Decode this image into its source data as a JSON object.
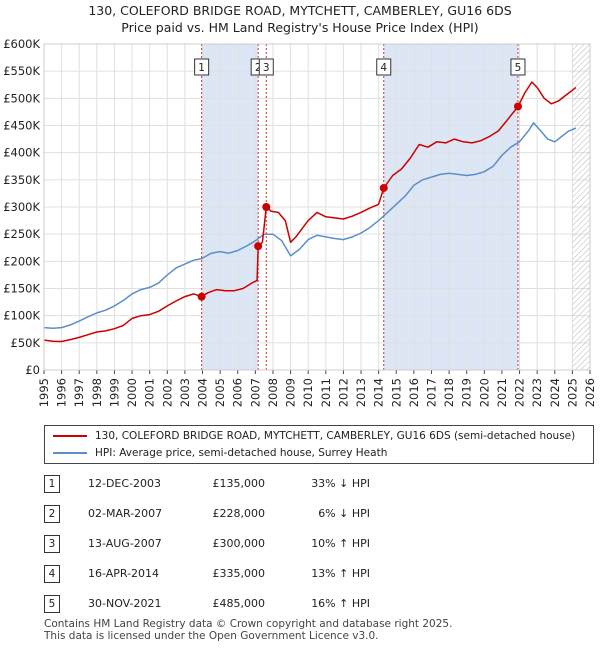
{
  "title_line1": "130, COLEFORD BRIDGE ROAD, MYTCHETT, CAMBERLEY, GU16 6DS",
  "title_line2": "Price paid vs. HM Land Registry's House Price Index (HPI)",
  "chart_data": {
    "type": "line",
    "xlim": [
      1995,
      2026
    ],
    "ylim": [
      0,
      600000
    ],
    "y_ticks": [
      {
        "value": 0,
        "label": "£0"
      },
      {
        "value": 50000,
        "label": "£50K"
      },
      {
        "value": 100000,
        "label": "£100K"
      },
      {
        "value": 150000,
        "label": "£150K"
      },
      {
        "value": 200000,
        "label": "£200K"
      },
      {
        "value": 250000,
        "label": "£250K"
      },
      {
        "value": 300000,
        "label": "£300K"
      },
      {
        "value": 350000,
        "label": "£350K"
      },
      {
        "value": 400000,
        "label": "£400K"
      },
      {
        "value": 450000,
        "label": "£450K"
      },
      {
        "value": 500000,
        "label": "£500K"
      },
      {
        "value": 550000,
        "label": "£550K"
      },
      {
        "value": 600000,
        "label": "£600K"
      }
    ],
    "x_ticks": [
      "1995",
      "1996",
      "1997",
      "1998",
      "1999",
      "2000",
      "2001",
      "2002",
      "2003",
      "2004",
      "2005",
      "2006",
      "2007",
      "2008",
      "2009",
      "2010",
      "2011",
      "2012",
      "2013",
      "2014",
      "2015",
      "2016",
      "2017",
      "2018",
      "2019",
      "2020",
      "2021",
      "2022",
      "2023",
      "2024",
      "2025",
      "2026"
    ],
    "grid": true,
    "ownership_shading": [
      [
        2003.95,
        2007.15
      ],
      [
        2014.29,
        2021.91
      ]
    ],
    "future_hatch_from": 2025.0,
    "colors": {
      "price": "#cc0000",
      "hpi": "#5b8fc9",
      "shade": "#dde6f5",
      "marker_line": "#cc0000"
    },
    "series": [
      {
        "name": "130, COLEFORD BRIDGE ROAD, MYTCHETT, CAMBERLEY, GU16 6DS (semi-detached house)",
        "color": "#cc0000",
        "points": [
          [
            1995.0,
            55000
          ],
          [
            1995.5,
            53000
          ],
          [
            1996.0,
            52500
          ],
          [
            1996.5,
            56000
          ],
          [
            1997.0,
            60000
          ],
          [
            1997.5,
            65000
          ],
          [
            1998.0,
            70000
          ],
          [
            1998.5,
            72000
          ],
          [
            1999.0,
            76000
          ],
          [
            1999.5,
            82000
          ],
          [
            2000.0,
            95000
          ],
          [
            2000.5,
            100000
          ],
          [
            2001.0,
            102000
          ],
          [
            2001.5,
            108000
          ],
          [
            2002.0,
            118000
          ],
          [
            2002.5,
            127000
          ],
          [
            2003.0,
            135000
          ],
          [
            2003.5,
            140000
          ],
          [
            2003.95,
            135000
          ],
          [
            2004.3,
            142000
          ],
          [
            2004.8,
            148000
          ],
          [
            2005.3,
            146000
          ],
          [
            2005.8,
            146000
          ],
          [
            2006.3,
            150000
          ],
          [
            2006.8,
            160000
          ],
          [
            2007.1,
            165000
          ],
          [
            2007.16,
            228000
          ],
          [
            2007.4,
            235000
          ],
          [
            2007.62,
            300000
          ],
          [
            2007.9,
            292000
          ],
          [
            2008.3,
            290000
          ],
          [
            2008.7,
            275000
          ],
          [
            2009.0,
            235000
          ],
          [
            2009.3,
            245000
          ],
          [
            2009.7,
            262000
          ],
          [
            2010.0,
            275000
          ],
          [
            2010.5,
            290000
          ],
          [
            2011.0,
            282000
          ],
          [
            2011.5,
            280000
          ],
          [
            2012.0,
            278000
          ],
          [
            2012.5,
            283000
          ],
          [
            2013.0,
            290000
          ],
          [
            2013.5,
            298000
          ],
          [
            2014.0,
            305000
          ],
          [
            2014.29,
            335000
          ],
          [
            2014.8,
            358000
          ],
          [
            2015.3,
            370000
          ],
          [
            2015.8,
            390000
          ],
          [
            2016.3,
            415000
          ],
          [
            2016.8,
            410000
          ],
          [
            2017.3,
            420000
          ],
          [
            2017.8,
            418000
          ],
          [
            2018.3,
            425000
          ],
          [
            2018.8,
            420000
          ],
          [
            2019.3,
            418000
          ],
          [
            2019.8,
            422000
          ],
          [
            2020.3,
            430000
          ],
          [
            2020.8,
            440000
          ],
          [
            2021.3,
            460000
          ],
          [
            2021.91,
            485000
          ],
          [
            2022.3,
            510000
          ],
          [
            2022.7,
            530000
          ],
          [
            2023.0,
            520000
          ],
          [
            2023.4,
            500000
          ],
          [
            2023.8,
            490000
          ],
          [
            2024.2,
            495000
          ],
          [
            2024.6,
            505000
          ],
          [
            2025.0,
            515000
          ],
          [
            2025.2,
            520000
          ]
        ]
      },
      {
        "name": "HPI: Average price, semi-detached house, Surrey Heath",
        "color": "#5b8fc9",
        "points": [
          [
            1995.0,
            78000
          ],
          [
            1995.5,
            77000
          ],
          [
            1996.0,
            78000
          ],
          [
            1996.5,
            83000
          ],
          [
            1997.0,
            90000
          ],
          [
            1997.5,
            98000
          ],
          [
            1998.0,
            105000
          ],
          [
            1998.5,
            110000
          ],
          [
            1999.0,
            118000
          ],
          [
            1999.5,
            128000
          ],
          [
            2000.0,
            140000
          ],
          [
            2000.5,
            148000
          ],
          [
            2001.0,
            152000
          ],
          [
            2001.5,
            160000
          ],
          [
            2002.0,
            175000
          ],
          [
            2002.5,
            188000
          ],
          [
            2003.0,
            195000
          ],
          [
            2003.5,
            202000
          ],
          [
            2003.95,
            205000
          ],
          [
            2004.5,
            215000
          ],
          [
            2005.0,
            218000
          ],
          [
            2005.5,
            215000
          ],
          [
            2006.0,
            220000
          ],
          [
            2006.5,
            228000
          ],
          [
            2007.0,
            238000
          ],
          [
            2007.5,
            250000
          ],
          [
            2008.0,
            250000
          ],
          [
            2008.5,
            238000
          ],
          [
            2009.0,
            210000
          ],
          [
            2009.5,
            222000
          ],
          [
            2010.0,
            240000
          ],
          [
            2010.5,
            248000
          ],
          [
            2011.0,
            245000
          ],
          [
            2011.5,
            242000
          ],
          [
            2012.0,
            240000
          ],
          [
            2012.5,
            245000
          ],
          [
            2013.0,
            252000
          ],
          [
            2013.5,
            262000
          ],
          [
            2014.0,
            275000
          ],
          [
            2014.5,
            290000
          ],
          [
            2015.0,
            305000
          ],
          [
            2015.5,
            320000
          ],
          [
            2016.0,
            340000
          ],
          [
            2016.5,
            350000
          ],
          [
            2017.0,
            355000
          ],
          [
            2017.5,
            360000
          ],
          [
            2018.0,
            362000
          ],
          [
            2018.5,
            360000
          ],
          [
            2019.0,
            358000
          ],
          [
            2019.5,
            360000
          ],
          [
            2020.0,
            365000
          ],
          [
            2020.5,
            375000
          ],
          [
            2021.0,
            395000
          ],
          [
            2021.5,
            410000
          ],
          [
            2022.0,
            420000
          ],
          [
            2022.5,
            440000
          ],
          [
            2022.8,
            455000
          ],
          [
            2023.2,
            440000
          ],
          [
            2023.6,
            425000
          ],
          [
            2024.0,
            420000
          ],
          [
            2024.4,
            430000
          ],
          [
            2024.8,
            440000
          ],
          [
            2025.2,
            445000
          ]
        ]
      }
    ],
    "sale_markers": [
      {
        "label": "1",
        "x": 2003.95,
        "y": 135000
      },
      {
        "label": "2",
        "x": 2007.16,
        "y": 228000
      },
      {
        "label": "3",
        "x": 2007.62,
        "y": 300000
      },
      {
        "label": "4",
        "x": 2014.29,
        "y": 335000
      },
      {
        "label": "5",
        "x": 2021.91,
        "y": 485000
      }
    ]
  },
  "legend": {
    "price_label": "130, COLEFORD BRIDGE ROAD, MYTCHETT, CAMBERLEY, GU16 6DS (semi-detached house)",
    "hpi_label": "HPI: Average price, semi-detached house, Surrey Heath"
  },
  "sales": [
    {
      "num": "1",
      "date": "12-DEC-2003",
      "price": "£135,000",
      "hpi": "33% ↓ HPI"
    },
    {
      "num": "2",
      "date": "02-MAR-2007",
      "price": "£228,000",
      "hpi": "6% ↓ HPI"
    },
    {
      "num": "3",
      "date": "13-AUG-2007",
      "price": "£300,000",
      "hpi": "10% ↑ HPI"
    },
    {
      "num": "4",
      "date": "16-APR-2014",
      "price": "£335,000",
      "hpi": "13% ↑ HPI"
    },
    {
      "num": "5",
      "date": "30-NOV-2021",
      "price": "£485,000",
      "hpi": "16% ↑ HPI"
    }
  ],
  "footer_line1": "Contains HM Land Registry data © Crown copyright and database right 2025.",
  "footer_line2": "This data is licensed under the Open Government Licence v3.0."
}
